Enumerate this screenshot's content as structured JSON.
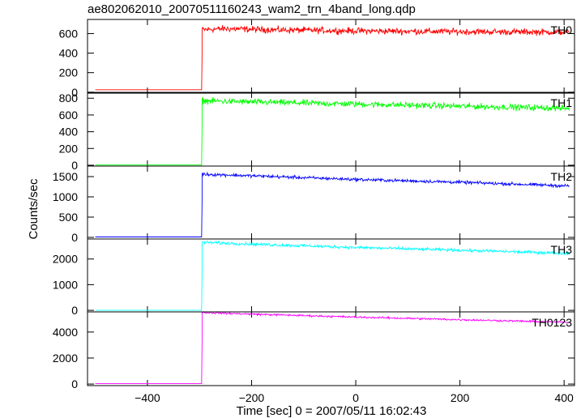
{
  "chart_data": {
    "type": "line",
    "title": "ae802062010_20070511160243_wam2_trn_4band_long.qdp",
    "xlabel": "Time [sec] 0 = 2007/05/11 16:02:43",
    "ylabel": "Counts/sec",
    "xlim": [
      -515,
      420
    ],
    "xticks": [
      -400,
      -200,
      0,
      200,
      400
    ],
    "xtick_labels": [
      "−400",
      "−200",
      "0",
      "200",
      "400"
    ],
    "panels": [
      {
        "name": "TH0",
        "color": "#ff0000",
        "ylim": [
          -10,
          745
        ],
        "yticks": [
          0,
          200,
          400,
          600
        ],
        "pre_level": 25,
        "start_x": -500,
        "trigger_x": -295,
        "end_x": 410,
        "post_points": [
          [
            -295,
            640
          ],
          [
            -250,
            650
          ],
          [
            -150,
            638
          ],
          [
            0,
            628
          ],
          [
            200,
            620
          ],
          [
            410,
            615
          ]
        ],
        "noise": 25
      },
      {
        "name": "TH1",
        "color": "#00ff00",
        "ylim": [
          -10,
          870
        ],
        "yticks": [
          0,
          200,
          400,
          600,
          800
        ],
        "pre_level": 3,
        "start_x": -500,
        "trigger_x": -295,
        "end_x": 410,
        "post_points": [
          [
            -295,
            770
          ],
          [
            -200,
            755
          ],
          [
            0,
            730
          ],
          [
            200,
            705
          ],
          [
            410,
            680
          ]
        ],
        "noise": 28
      },
      {
        "name": "TH2",
        "color": "#0000ff",
        "ylim": [
          -40,
          1760
        ],
        "yticks": [
          0,
          500,
          1000,
          1500
        ],
        "pre_level": 10,
        "start_x": -500,
        "trigger_x": -295,
        "end_x": 410,
        "post_points": [
          [
            -295,
            1560
          ],
          [
            -200,
            1520
          ],
          [
            0,
            1430
          ],
          [
            200,
            1360
          ],
          [
            410,
            1270
          ]
        ],
        "noise": 30
      },
      {
        "name": "TH3",
        "color": "#00ffff",
        "ylim": [
          -60,
          2780
        ],
        "yticks": [
          0,
          1000,
          2000
        ],
        "pre_level": 0,
        "start_x": -500,
        "trigger_x": -295,
        "end_x": 410,
        "post_points": [
          [
            -295,
            2650
          ],
          [
            -200,
            2580
          ],
          [
            0,
            2450
          ],
          [
            200,
            2340
          ],
          [
            410,
            2220
          ]
        ],
        "noise": 45
      },
      {
        "name": "TH0123",
        "color": "#ff00ff",
        "ylim": [
          -120,
          5550
        ],
        "yticks": [
          0,
          2000,
          4000
        ],
        "pre_level": 30,
        "start_x": -500,
        "trigger_x": -295,
        "end_x": 410,
        "post_points": [
          [
            -295,
            5500
          ],
          [
            -200,
            5380
          ],
          [
            0,
            5150
          ],
          [
            200,
            4950
          ],
          [
            410,
            4750
          ]
        ],
        "noise": 55
      }
    ]
  }
}
